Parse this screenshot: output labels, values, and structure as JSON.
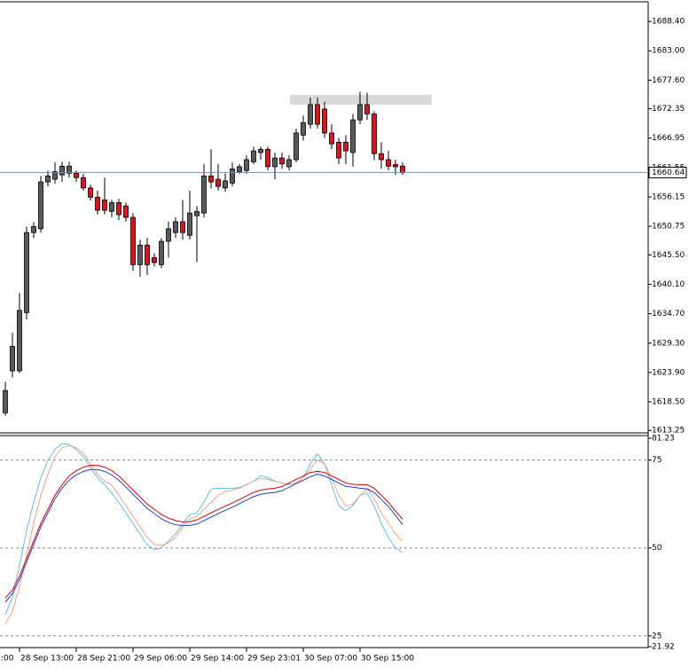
{
  "chart_data": [
    {
      "type": "candlestick",
      "categories": [
        null,
        null,
        "28 Sep 13:00",
        null,
        null,
        null,
        null,
        null,
        null,
        null,
        "28 Sep 21:00",
        null,
        null,
        null,
        null,
        null,
        null,
        null,
        "29 Sep 06:00",
        null,
        null,
        null,
        null,
        null,
        null,
        null,
        "29 Sep 14:00",
        null,
        null,
        null,
        null,
        null,
        null,
        null,
        "29 Sep 23:01",
        null,
        null,
        null,
        null,
        null,
        null,
        null,
        "30 Sep 07:00",
        null,
        null,
        null,
        null,
        null,
        null,
        null,
        "30 Sep 15:00",
        null,
        null,
        null,
        null,
        null,
        null
      ],
      "clipped_label": ":00",
      "open": [
        1616.5,
        1624.2,
        1624.2,
        1634.9,
        1649.6,
        1650.3,
        1658.9,
        1659.4,
        1660.2,
        1660.5,
        1660.5,
        1659.7,
        1657.8,
        1656.1,
        1655.6,
        1653.5,
        1655.1,
        1654.5,
        1652.4,
        1643.7,
        1647.3,
        1645.0,
        1643.7,
        1648.0,
        1649.6,
        1651.6,
        1649.1,
        1652.7,
        1653.2,
        1660.0,
        1659.4,
        1657.8,
        1658.7,
        1660.8,
        1661.0,
        1662.6,
        1664.3,
        1664.9,
        1661.7,
        1663.3,
        1661.7,
        1663.0,
        1667.5,
        1669.5,
        1673.1,
        1672.3,
        1667.9,
        1666.2,
        1666.2,
        1664.3,
        1670.3,
        1673.1,
        1671.4,
        1664.1,
        1663.0,
        1662.1,
        1661.8
      ],
      "high": [
        1622.2,
        1631.2,
        1638.5,
        1650.7,
        1651.5,
        1660.0,
        1661.0,
        1662.5,
        1662.6,
        1662.6,
        1661.0,
        1660.4,
        1658.4,
        1657.3,
        1659.7,
        1655.6,
        1655.8,
        1655.1,
        1653.2,
        1648.3,
        1648.6,
        1645.8,
        1648.6,
        1651.6,
        1652.4,
        1655.6,
        1657.3,
        1654.5,
        1662.2,
        1664.9,
        1662.2,
        1660.5,
        1662.5,
        1662.2,
        1663.8,
        1665.4,
        1665.4,
        1665.4,
        1664.3,
        1664.3,
        1663.8,
        1668.7,
        1671.1,
        1674.4,
        1674.4,
        1673.6,
        1669.5,
        1667.0,
        1667.5,
        1671.4,
        1675.5,
        1675.3,
        1671.9,
        1666.2,
        1664.6,
        1663.0,
        1662.5
      ],
      "low": [
        1616.0,
        1623.0,
        1623.8,
        1633.6,
        1648.6,
        1649.6,
        1658.1,
        1658.6,
        1658.9,
        1659.7,
        1658.9,
        1657.3,
        1655.5,
        1652.9,
        1652.9,
        1652.4,
        1651.9,
        1651.6,
        1642.6,
        1641.5,
        1641.8,
        1643.4,
        1643.1,
        1645.0,
        1648.6,
        1648.3,
        1648.3,
        1644.2,
        1652.4,
        1657.7,
        1657.3,
        1657.1,
        1658.1,
        1660.4,
        1660.4,
        1662.2,
        1663.0,
        1661.0,
        1659.4,
        1661.3,
        1661.0,
        1662.5,
        1666.5,
        1668.7,
        1668.7,
        1667.0,
        1664.9,
        1662.2,
        1662.2,
        1661.7,
        1669.5,
        1670.3,
        1662.9,
        1661.3,
        1661.0,
        1660.2,
        1660.2
      ],
      "close": [
        1620.6,
        1628.7,
        1635.3,
        1649.6,
        1650.7,
        1658.9,
        1660.0,
        1660.8,
        1661.8,
        1661.8,
        1659.7,
        1657.8,
        1656.1,
        1653.7,
        1653.7,
        1655.1,
        1652.9,
        1652.4,
        1643.7,
        1647.3,
        1643.7,
        1644.1,
        1648.0,
        1650.3,
        1651.6,
        1649.6,
        1653.2,
        1653.5,
        1660.0,
        1658.9,
        1658.1,
        1659.1,
        1661.3,
        1661.7,
        1663.0,
        1664.6,
        1664.9,
        1661.7,
        1663.3,
        1662.2,
        1663.0,
        1667.9,
        1669.8,
        1673.1,
        1669.5,
        1667.9,
        1665.9,
        1663.3,
        1664.6,
        1670.3,
        1673.1,
        1671.4,
        1664.1,
        1663.0,
        1661.8,
        1661.7,
        1660.6
      ],
      "up_color": "#5a5a5a",
      "down_color": "#e0131b",
      "current_price": 1660.64,
      "ylim": [
        1612.8,
        1692.0
      ],
      "yticks": [
        {
          "value": 1688.4,
          "label": "1688.40"
        },
        {
          "value": 1683.0,
          "label": "1683.00"
        },
        {
          "value": 1677.6,
          "label": "1677.60"
        },
        1672.35,
        1666.95,
        1661.55,
        1656.15,
        1650.75,
        {
          "value": 1645.5,
          "label": "1645.50"
        },
        {
          "value": 1640.1,
          "label": "1640.10"
        },
        {
          "value": 1634.7,
          "label": "1634.70"
        },
        {
          "value": 1629.3,
          "label": "1629.30"
        },
        {
          "value": 1623.9,
          "label": "1623.90"
        },
        {
          "value": 1618.5,
          "label": "1618.50"
        },
        1613.25
      ]
    },
    {
      "type": "line",
      "series": [
        {
          "color": "#5bc0f0",
          "values": [
            31,
            36,
            45,
            55,
            63,
            70,
            75,
            78,
            79.7,
            79.5,
            78,
            76,
            73,
            70,
            68,
            65.6,
            63,
            60,
            57,
            54,
            51,
            49.5,
            50,
            52,
            54,
            57,
            59.4,
            60,
            63,
            66.8,
            67,
            67,
            67,
            67.2,
            68,
            69,
            70.6,
            70,
            69,
            68.5,
            68,
            68.5,
            70,
            74,
            76.8,
            74,
            68,
            62,
            60.6,
            62,
            65,
            65.6,
            62,
            57,
            53,
            50,
            48.7
          ]
        },
        {
          "color": "#f4a07a",
          "values": [
            28.4,
            32,
            39,
            48,
            57,
            65,
            71,
            76,
            78.5,
            79.2,
            78.5,
            77,
            74,
            71,
            69,
            68,
            65,
            62,
            59,
            56,
            53,
            51,
            50.7,
            51.5,
            53,
            56,
            58.2,
            59,
            61,
            63,
            65,
            66,
            66.5,
            67,
            68,
            69,
            69.8,
            69.5,
            69,
            68.5,
            68.2,
            68.5,
            70,
            72.5,
            75,
            74,
            70,
            65,
            62,
            62.5,
            65,
            66.8,
            64,
            60,
            57,
            54,
            51.9
          ]
        },
        {
          "color": "#e00000",
          "values": [
            35.8,
            38,
            42,
            47,
            52,
            57,
            61,
            65,
            68,
            70.5,
            72,
            73,
            73.5,
            73.5,
            73,
            72,
            70.5,
            68.5,
            66.5,
            64.5,
            62.5,
            61,
            59.5,
            58.5,
            57.8,
            57.4,
            57.5,
            58,
            59,
            60,
            61,
            61.9,
            62.8,
            63.8,
            64.8,
            65.8,
            66.5,
            66.8,
            67,
            67.5,
            68.5,
            69.5,
            70.5,
            71.5,
            71.8,
            71.5,
            70.5,
            69.5,
            68.5,
            68.1,
            68,
            68,
            67,
            65,
            63,
            60.5,
            58.2
          ]
        },
        {
          "color": "#1f3fdc",
          "values": [
            34.6,
            37,
            41,
            46,
            51,
            56,
            60,
            64,
            67,
            69.3,
            70.8,
            71.8,
            72.3,
            72.3,
            71.8,
            70.8,
            69.3,
            67.3,
            65.3,
            63.3,
            61.3,
            59.8,
            58.3,
            57.3,
            56.6,
            56.4,
            56.4,
            56.8,
            57.8,
            58.8,
            59.8,
            60.7,
            61.6,
            62.6,
            63.6,
            64.6,
            65.3,
            65.6,
            65.8,
            66.3,
            67.3,
            68.3,
            69.3,
            70.3,
            71,
            70.5,
            69.5,
            68.5,
            67.5,
            67.3,
            67,
            66.8,
            65.8,
            63.8,
            61.8,
            59.3,
            56.7
          ]
        }
      ],
      "ylim": [
        21.92,
        81.23
      ],
      "yticks": [
        81.23,
        75,
        50,
        25,
        21.92
      ],
      "levels": [
        75,
        50,
        25
      ]
    }
  ]
}
